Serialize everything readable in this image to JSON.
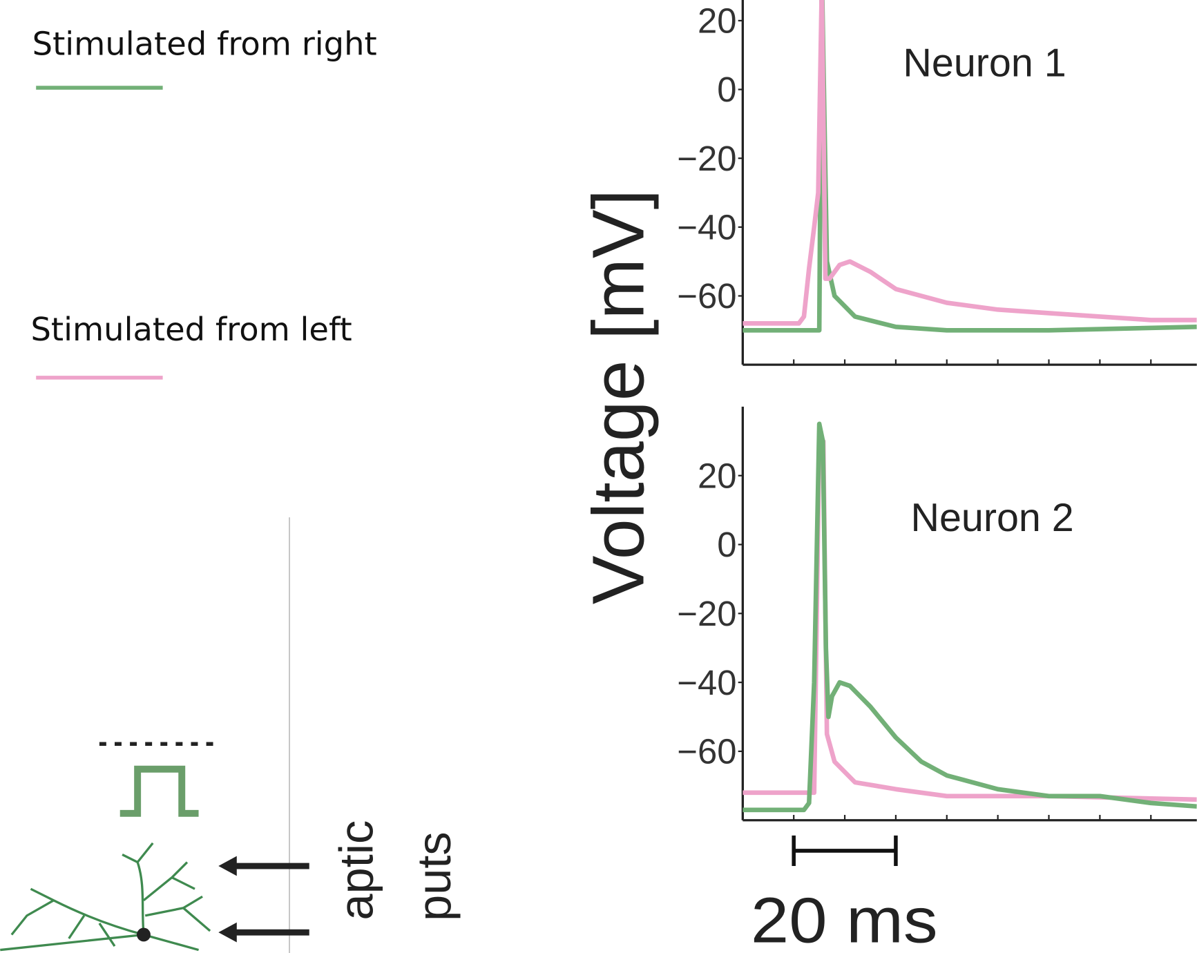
{
  "legend_title": null,
  "y_label": "Voltage [mV]",
  "scalebar": {
    "start": 10,
    "value": 20,
    "label": "20 ms"
  },
  "diagram": {
    "labels": [
      "aptic",
      "puts"
    ]
  },
  "chart_data": [
    {
      "type": "line",
      "title": "Neuron 1",
      "xlim": [
        0,
        89
      ],
      "xticks": [
        10,
        20,
        30,
        40,
        50,
        60,
        70,
        80
      ],
      "ylim": [
        -80,
        26
      ],
      "yticks": [
        {
          "value": -60,
          "label": "−60"
        },
        {
          "value": -40,
          "label": "−40"
        },
        {
          "value": -20,
          "label": "−20"
        },
        0,
        20
      ],
      "series": [
        {
          "name": "Stimulated from right",
          "color": "#72b077",
          "x": [
            0,
            15,
            15.5,
            16.5,
            18,
            22,
            30,
            40,
            60,
            89
          ],
          "values": [
            -70,
            -70,
            35,
            -50,
            -60,
            -66,
            -69,
            -70,
            -70,
            -69
          ]
        },
        {
          "name": "Stimulated from left",
          "color": "#eea3ca",
          "x": [
            0,
            11,
            12,
            13,
            14,
            14.8,
            15.5,
            16.2,
            17,
            19,
            21,
            25,
            30,
            40,
            50,
            60,
            70,
            80,
            89
          ],
          "values": [
            -68,
            -68,
            -66,
            -52,
            -40,
            -30,
            30,
            -55,
            -55,
            -51,
            -50,
            -53,
            -58,
            -62,
            -64,
            -65,
            -66,
            -67,
            -67
          ]
        }
      ]
    },
    {
      "type": "line",
      "title": "Neuron 2",
      "xlim": [
        0,
        89
      ],
      "xticks": [
        10,
        20,
        30,
        40,
        50,
        60,
        70,
        80
      ],
      "ylim": [
        -80,
        40
      ],
      "yticks": [
        {
          "value": -60,
          "label": "−60"
        },
        {
          "value": -40,
          "label": "−40"
        },
        {
          "value": -20,
          "label": "−20"
        },
        0,
        20
      ],
      "series": [
        {
          "color": "#eea3ca",
          "x": [
            0,
            14,
            15,
            15.8,
            16.5,
            18,
            22,
            30,
            40,
            60,
            89
          ],
          "values": [
            -72,
            -72,
            30,
            30,
            -55,
            -63,
            -69,
            -71,
            -73,
            -73,
            -74
          ]
        },
        {
          "color": "#72b077",
          "x": [
            0,
            12,
            13,
            14,
            15,
            15.7,
            16.3,
            16.8,
            17.5,
            19,
            21,
            25,
            30,
            35,
            40,
            50,
            60,
            70,
            80,
            89
          ],
          "values": [
            -77,
            -77,
            -75,
            -40,
            35,
            30,
            -30,
            -50,
            -44,
            -40,
            -41,
            -47,
            -56,
            -63,
            -67,
            -71,
            -73,
            -73,
            -75,
            -76
          ]
        }
      ]
    }
  ]
}
